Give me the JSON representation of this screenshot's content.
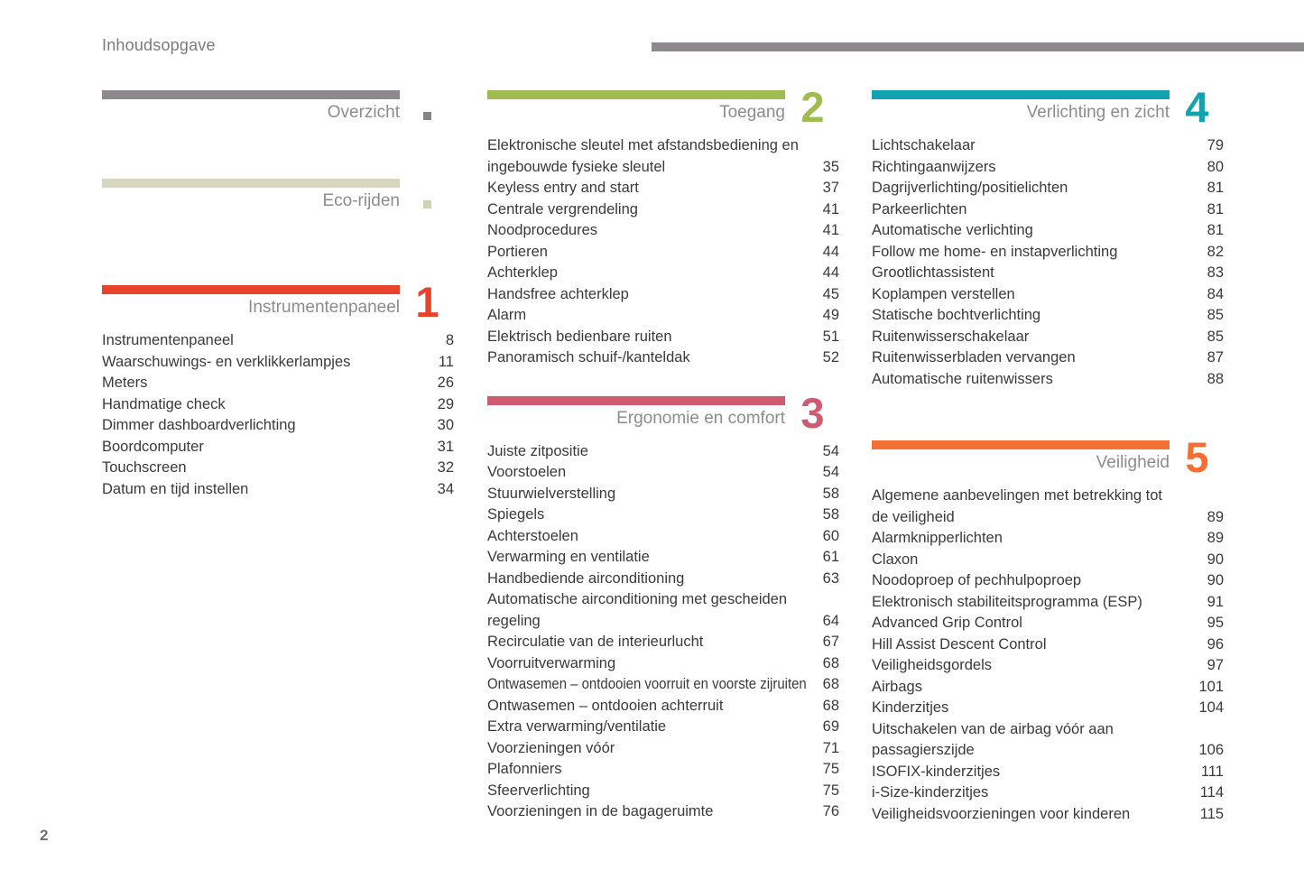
{
  "page": {
    "heading": "Inhoudsopgave",
    "page_number": "2"
  },
  "decor": {
    "top_bar_color": "#8d898d",
    "entry_text_color": "#3a3a3a",
    "title_gray": "#8c8c8c"
  },
  "columns": [
    {
      "sections": [
        {
          "kind": "plain",
          "title": "Overzicht",
          "color": "#8d898d",
          "marker_color": "#87838a"
        },
        {
          "kind": "plain",
          "title": "Eco-rijden",
          "color": "#d5d7bf",
          "marker_color": "#cfd2b2"
        },
        {
          "kind": "numbered",
          "number": "1",
          "title": "Instrumentenpaneel",
          "color": "#e8432d",
          "entries": [
            {
              "label": "Instrumentenpaneel",
              "page": "8"
            },
            {
              "label": "Waarschuwings- en verklikkerlampjes",
              "page": "11"
            },
            {
              "label": "Meters",
              "page": "26"
            },
            {
              "label": "Handmatige check",
              "page": "29"
            },
            {
              "label": "Dimmer dashboardverlichting",
              "page": "30"
            },
            {
              "label": "Boordcomputer",
              "page": "31"
            },
            {
              "label": "Touchscreen",
              "page": "32"
            },
            {
              "label": "Datum en tijd instellen",
              "page": "34"
            }
          ]
        }
      ]
    },
    {
      "sections": [
        {
          "kind": "numbered",
          "number": "2",
          "title": "Toegang",
          "color": "#a0bc50",
          "entries": [
            {
              "label": [
                "Elektronische sleutel met afstandsbediening en",
                "ingebouwde fysieke sleutel"
              ],
              "page": "35"
            },
            {
              "label": "Keyless entry and start",
              "page": "37"
            },
            {
              "label": "Centrale vergrendeling",
              "page": "41"
            },
            {
              "label": "Noodprocedures",
              "page": "41"
            },
            {
              "label": "Portieren",
              "page": "44"
            },
            {
              "label": "Achterklep",
              "page": "44"
            },
            {
              "label": "Handsfree achterklep",
              "page": "45"
            },
            {
              "label": "Alarm",
              "page": "49"
            },
            {
              "label": "Elektrisch bedienbare ruiten",
              "page": "51"
            },
            {
              "label": "Panoramisch schuif-/kanteldak",
              "page": "52"
            }
          ]
        },
        {
          "kind": "numbered",
          "number": "3",
          "title": "Ergonomie en comfort",
          "color": "#d05a70",
          "entries": [
            {
              "label": "Juiste zitpositie",
              "page": "54"
            },
            {
              "label": "Voorstoelen",
              "page": "54"
            },
            {
              "label": "Stuurwielverstelling",
              "page": "58"
            },
            {
              "label": "Spiegels",
              "page": "58"
            },
            {
              "label": "Achterstoelen",
              "page": "60"
            },
            {
              "label": "Verwarming en ventilatie",
              "page": "61"
            },
            {
              "label": "Handbediende airconditioning",
              "page": "63"
            },
            {
              "label": [
                "Automatische airconditioning met gescheiden",
                "regeling"
              ],
              "page": "64"
            },
            {
              "label": "Recirculatie van de interieurlucht",
              "page": "67"
            },
            {
              "label": "Voorruitverwarming",
              "page": "68"
            },
            {
              "label": "Ontwasemen – ontdooien voorruit en voorste zijruiten",
              "page": "68"
            },
            {
              "label": "Ontwasemen – ontdooien achterruit",
              "page": "68"
            },
            {
              "label": "Extra verwarming/ventilatie",
              "page": "69"
            },
            {
              "label": "Voorzieningen vóór",
              "page": "71"
            },
            {
              "label": "Plafonniers",
              "page": "75"
            },
            {
              "label": "Sfeerverlichting",
              "page": "75"
            },
            {
              "label": "Voorzieningen in de bagageruimte",
              "page": "76"
            }
          ]
        }
      ]
    },
    {
      "sections": [
        {
          "kind": "numbered",
          "number": "4",
          "title": "Verlichting en zicht",
          "color": "#12a3b0",
          "entries": [
            {
              "label": "Lichtschakelaar",
              "page": "79"
            },
            {
              "label": "Richtingaanwijzers",
              "page": "80"
            },
            {
              "label": "Dagrijverlichting/positielichten",
              "page": "81"
            },
            {
              "label": "Parkeerlichten",
              "page": "81"
            },
            {
              "label": "Automatische verlichting",
              "page": "81"
            },
            {
              "label": "Follow me home- en instapverlichting",
              "page": "82"
            },
            {
              "label": "Grootlichtassistent",
              "page": "83"
            },
            {
              "label": "Koplampen verstellen",
              "page": "84"
            },
            {
              "label": "Statische bochtverlichting",
              "page": "85"
            },
            {
              "label": "Ruitenwisserschakelaar",
              "page": "85"
            },
            {
              "label": "Ruitenwisserbladen vervangen",
              "page": "87"
            },
            {
              "label": "Automatische ruitenwissers",
              "page": "88"
            }
          ]
        },
        {
          "kind": "numbered",
          "number": "5",
          "title": "Veiligheid",
          "color": "#f37035",
          "entries": [
            {
              "label": [
                "Algemene aanbevelingen met betrekking tot",
                "de veiligheid"
              ],
              "page": "89"
            },
            {
              "label": "Alarmknipperlichten",
              "page": "89"
            },
            {
              "label": "Claxon",
              "page": "90"
            },
            {
              "label": "Noodoproep of pechhulpoproep",
              "page": "90"
            },
            {
              "label": "Elektronisch stabiliteitsprogramma (ESP)",
              "page": "91"
            },
            {
              "label": "Advanced Grip Control",
              "page": "95"
            },
            {
              "label": "Hill Assist Descent Control",
              "page": "96"
            },
            {
              "label": "Veiligheidsgordels",
              "page": "97"
            },
            {
              "label": "Airbags",
              "page": "101"
            },
            {
              "label": "Kinderzitjes",
              "page": "104"
            },
            {
              "label": [
                "Uitschakelen van de airbag vóór aan",
                "passagierszijde"
              ],
              "page": "106"
            },
            {
              "label": "ISOFIX-kinderzitjes",
              "page": "111"
            },
            {
              "label": "i-Size-kinderzitjes",
              "page": "114"
            },
            {
              "label": "Veiligheidsvoorzieningen voor kinderen",
              "page": "115"
            }
          ]
        }
      ]
    }
  ]
}
